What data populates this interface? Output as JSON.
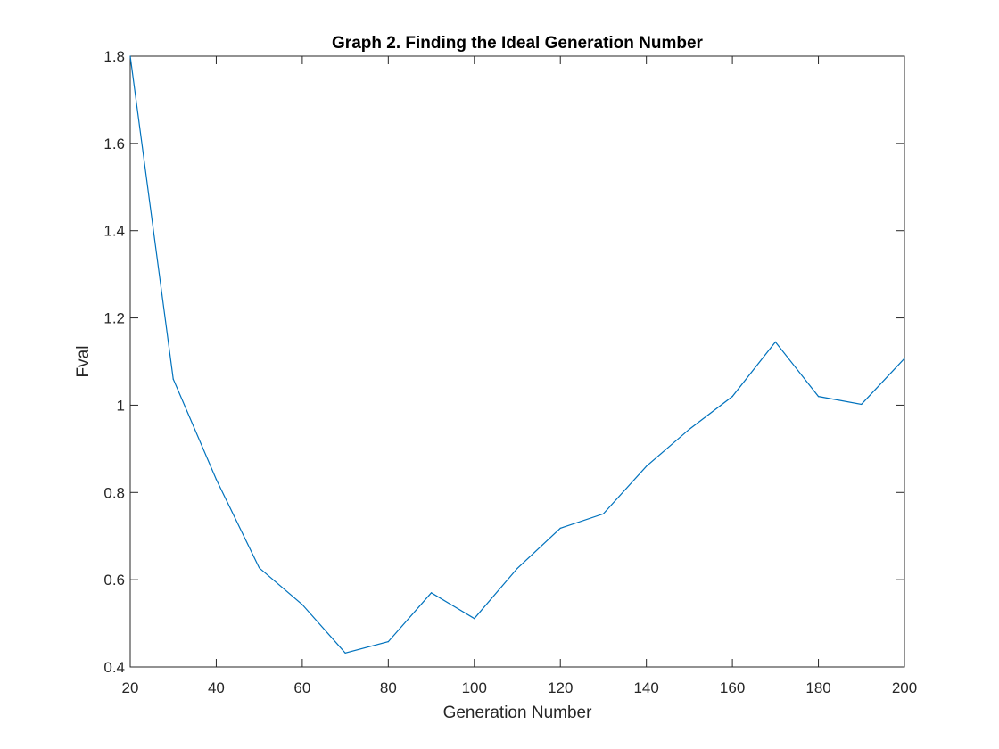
{
  "chart_data": {
    "type": "line",
    "title": "Graph 2. Finding the Ideal Generation Number",
    "xlabel": "Generation Number",
    "ylabel": "Fval",
    "xlim": [
      20,
      200
    ],
    "ylim": [
      0.4,
      1.8
    ],
    "xticks": [
      20,
      40,
      60,
      80,
      100,
      120,
      140,
      160,
      180,
      200
    ],
    "yticks": [
      0.4,
      0.6,
      0.8,
      1,
      1.2,
      1.4,
      1.6,
      1.8
    ],
    "xtick_labels": [
      "20",
      "40",
      "60",
      "80",
      "100",
      "120",
      "140",
      "160",
      "180",
      "200"
    ],
    "ytick_labels": [
      "0.4",
      "0.6",
      "0.8",
      "1",
      "1.2",
      "1.4",
      "1.6",
      "1.8"
    ],
    "grid": false,
    "series": [
      {
        "color": "#0072bd",
        "x": [
          20,
          30,
          40,
          50,
          60,
          70,
          80,
          90,
          100,
          110,
          120,
          130,
          140,
          150,
          160,
          170,
          180,
          190,
          200
        ],
        "y": [
          1.8,
          1.06,
          0.83,
          0.627,
          0.543,
          0.432,
          0.458,
          0.57,
          0.511,
          0.626,
          0.718,
          0.751,
          0.86,
          0.945,
          1.02,
          1.145,
          1.02,
          1.002,
          1.107
        ]
      }
    ]
  }
}
